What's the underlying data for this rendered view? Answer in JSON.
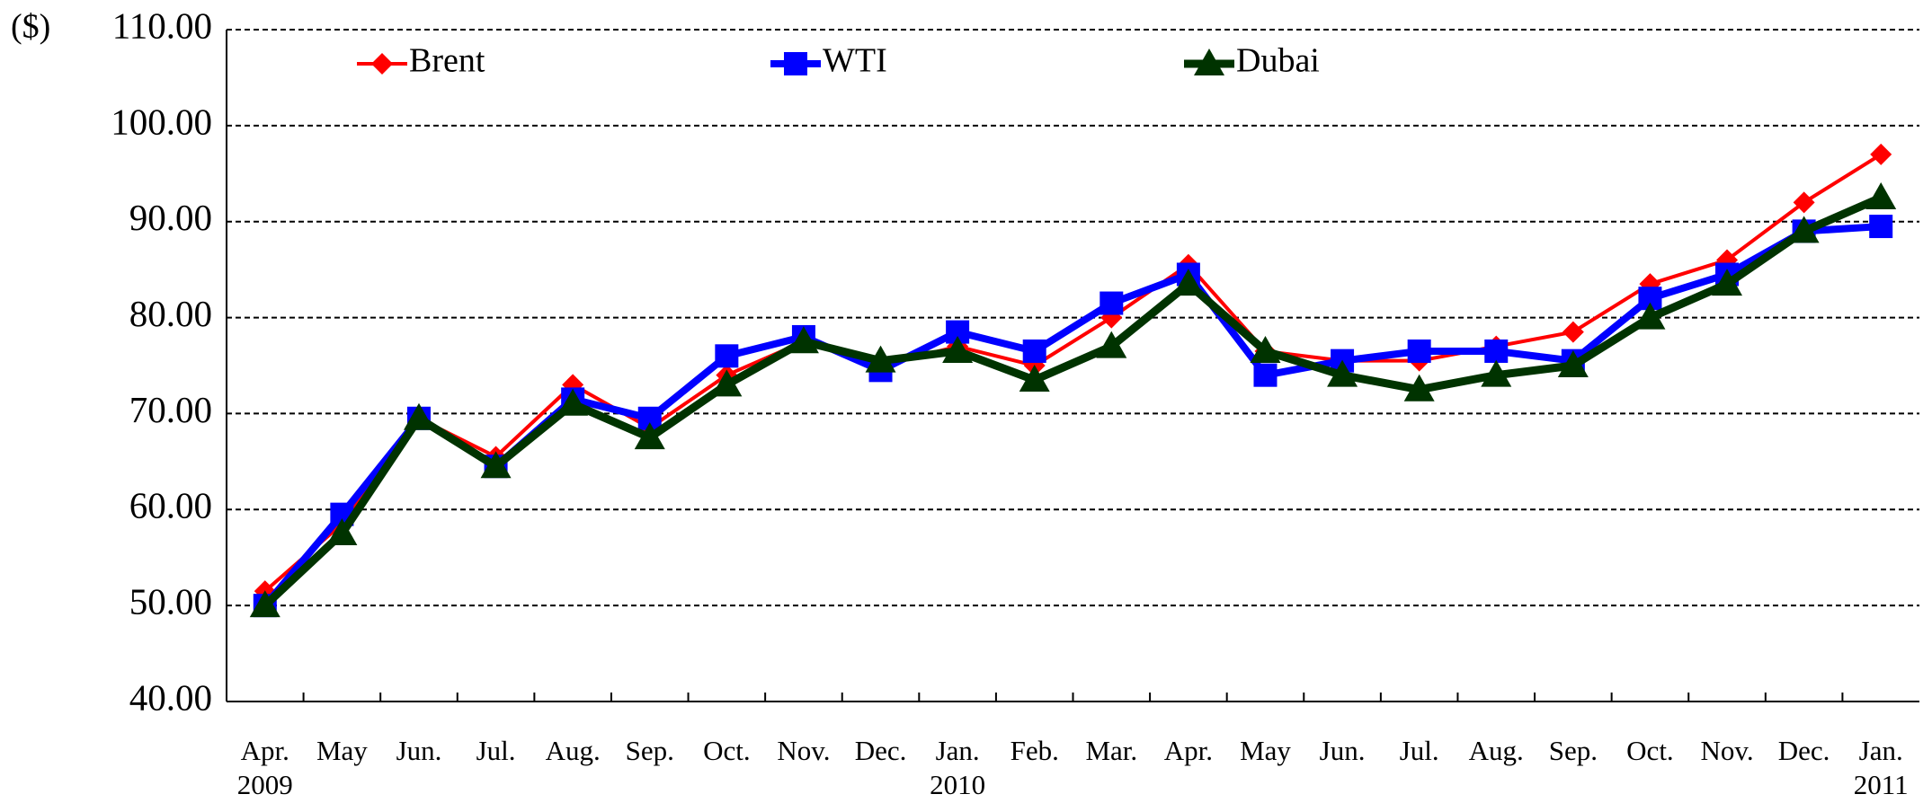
{
  "chart_data": {
    "type": "line",
    "ylabel": "($)",
    "categories": [
      "Apr.",
      "May",
      "Jun.",
      "Jul.",
      "Aug.",
      "Sep.",
      "Oct.",
      "Nov.",
      "Dec.",
      "Jan.",
      "Feb.",
      "Mar.",
      "Apr.",
      "May",
      "Jun.",
      "Jul.",
      "Aug.",
      "Sep.",
      "Oct.",
      "Nov.",
      "Dec.",
      "Jan."
    ],
    "category_years": [
      "2009",
      null,
      null,
      null,
      null,
      null,
      null,
      null,
      null,
      "2010",
      null,
      null,
      null,
      null,
      null,
      null,
      null,
      null,
      null,
      null,
      null,
      "2011"
    ],
    "series": [
      {
        "name": "Brent",
        "color": "#ff0000",
        "marker": "diamond",
        "values": [
          51.5,
          58.5,
          69.5,
          65.5,
          73,
          68.5,
          74,
          77.5,
          75,
          77,
          75,
          80,
          85.5,
          76.5,
          75.5,
          75.5,
          77,
          78.5,
          83.5,
          86,
          92,
          97
        ]
      },
      {
        "name": "WTI",
        "color": "#0000ff",
        "marker": "square",
        "values": [
          50,
          59.5,
          69.5,
          64.5,
          71.5,
          69.5,
          76,
          78,
          74.5,
          78.5,
          76.5,
          81.5,
          84.5,
          74,
          75.5,
          76.5,
          76.5,
          75.5,
          82,
          84.5,
          89,
          89.5
        ]
      },
      {
        "name": "Dubai",
        "color": "#003300",
        "marker": "triangle",
        "values": [
          50,
          57.5,
          69.5,
          64.5,
          71,
          67.5,
          73,
          77.5,
          75.5,
          76.5,
          73.5,
          77,
          83.5,
          76.5,
          74,
          72.5,
          74,
          75,
          80,
          83.5,
          89,
          92.5
        ]
      }
    ],
    "ylim": [
      40,
      110
    ],
    "yticks": [
      {
        "value": 40,
        "label": "40.00"
      },
      {
        "value": 50,
        "label": "50.00"
      },
      {
        "value": 60,
        "label": "60.00"
      },
      {
        "value": 70,
        "label": "70.00"
      },
      {
        "value": 80,
        "label": "80.00"
      },
      {
        "value": 90,
        "label": "90.00"
      },
      {
        "value": 100,
        "label": "100.00"
      },
      {
        "value": 110,
        "label": "110.00"
      }
    ],
    "grid": true,
    "legend": "top-left"
  }
}
